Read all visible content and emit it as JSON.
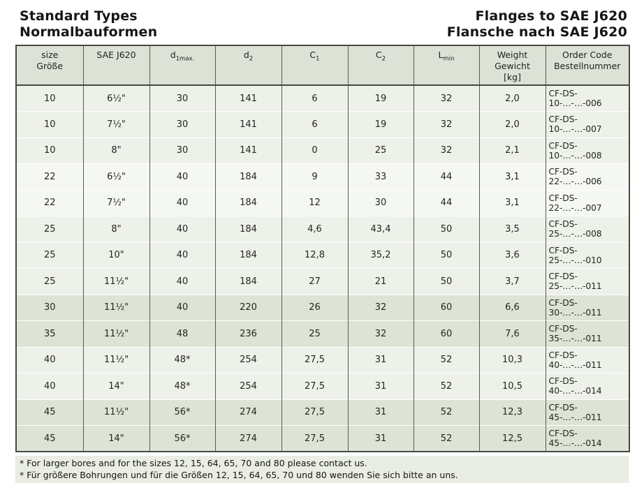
{
  "header": {
    "title_left_line1": "Standard Types",
    "title_left_line2": "Normalbauformen",
    "title_right_line1": "Flanges to SAE J620",
    "title_right_line2": "Flansche nach SAE J620"
  },
  "table": {
    "columns": [
      {
        "id": "size",
        "lines": [
          "size",
          "Größe"
        ]
      },
      {
        "id": "sae",
        "lines": [
          "SAE J620"
        ]
      },
      {
        "id": "d1",
        "base": "d",
        "sub": "1max."
      },
      {
        "id": "d2",
        "base": "d",
        "sub": "2"
      },
      {
        "id": "c1",
        "base": "C",
        "sub": "1"
      },
      {
        "id": "c2",
        "base": "C",
        "sub": "2"
      },
      {
        "id": "lmin",
        "base": "L",
        "sub": "min"
      },
      {
        "id": "weight",
        "lines": [
          "Weight",
          "Gewicht",
          "[kg]"
        ]
      },
      {
        "id": "order",
        "lines": [
          "Order Code",
          "Bestellnummer"
        ]
      }
    ],
    "shades": {
      "a": "#edf1e9",
      "b": "#f5f8f2",
      "c": "#dde3d5"
    },
    "rows": [
      {
        "size": "10",
        "sae": "6½\"",
        "d1": "30",
        "d2": "141",
        "c1": "6",
        "c2": "19",
        "lmin": "32",
        "weight": "2,0",
        "order": "CF-DS-10-…-…-006",
        "shade": "a"
      },
      {
        "size": "10",
        "sae": "7½\"",
        "d1": "30",
        "d2": "141",
        "c1": "6",
        "c2": "19",
        "lmin": "32",
        "weight": "2,0",
        "order": "CF-DS-10-…-…-007",
        "shade": "a"
      },
      {
        "size": "10",
        "sae": "8\"",
        "d1": "30",
        "d2": "141",
        "c1": "0",
        "c2": "25",
        "lmin": "32",
        "weight": "2,1",
        "order": "CF-DS-10-…-…-008",
        "shade": "a"
      },
      {
        "size": "22",
        "sae": "6½\"",
        "d1": "40",
        "d2": "184",
        "c1": "9",
        "c2": "33",
        "lmin": "44",
        "weight": "3,1",
        "order": "CF-DS-22-…-…-006",
        "shade": "b"
      },
      {
        "size": "22",
        "sae": "7½\"",
        "d1": "40",
        "d2": "184",
        "c1": "12",
        "c2": "30",
        "lmin": "44",
        "weight": "3,1",
        "order": "CF-DS-22-…-…-007",
        "shade": "b"
      },
      {
        "size": "25",
        "sae": "8\"",
        "d1": "40",
        "d2": "184",
        "c1": "4,6",
        "c2": "43,4",
        "lmin": "50",
        "weight": "3,5",
        "order": "CF-DS-25-…-…-008",
        "shade": "a"
      },
      {
        "size": "25",
        "sae": "10\"",
        "d1": "40",
        "d2": "184",
        "c1": "12,8",
        "c2": "35,2",
        "lmin": "50",
        "weight": "3,6",
        "order": "CF-DS-25-…-…-010",
        "shade": "a"
      },
      {
        "size": "25",
        "sae": "11½\"",
        "d1": "40",
        "d2": "184",
        "c1": "27",
        "c2": "21",
        "lmin": "50",
        "weight": "3,7",
        "order": "CF-DS-25-…-…-011",
        "shade": "a"
      },
      {
        "size": "30",
        "sae": "11½\"",
        "d1": "40",
        "d2": "220",
        "c1": "26",
        "c2": "32",
        "lmin": "60",
        "weight": "6,6",
        "order": "CF-DS-30-…-…-011",
        "shade": "c"
      },
      {
        "size": "35",
        "sae": "11½\"",
        "d1": "48",
        "d2": "236",
        "c1": "25",
        "c2": "32",
        "lmin": "60",
        "weight": "7,6",
        "order": "CF-DS-35-…-…-011",
        "shade": "c"
      },
      {
        "size": "40",
        "sae": "11½\"",
        "d1": "48*",
        "d2": "254",
        "c1": "27,5",
        "c2": "31",
        "lmin": "52",
        "weight": "10,3",
        "order": "CF-DS-40-…-…-011",
        "shade": "a"
      },
      {
        "size": "40",
        "sae": "14\"",
        "d1": "48*",
        "d2": "254",
        "c1": "27,5",
        "c2": "31",
        "lmin": "52",
        "weight": "10,5",
        "order": "CF-DS-40-…-…-014",
        "shade": "a"
      },
      {
        "size": "45",
        "sae": "11½\"",
        "d1": "56*",
        "d2": "274",
        "c1": "27,5",
        "c2": "31",
        "lmin": "52",
        "weight": "12,3",
        "order": "CF-DS-45-…-…-011",
        "shade": "c"
      },
      {
        "size": "45",
        "sae": "14\"",
        "d1": "56*",
        "d2": "274",
        "c1": "27,5",
        "c2": "31",
        "lmin": "52",
        "weight": "12,5",
        "order": "CF-DS-45-…-…-014",
        "shade": "c"
      }
    ]
  },
  "footnotes": [
    "* For larger bores and for the sizes 12, 15, 64, 65, 70 and 80 please contact us.",
    "* Für größere Bohrungen und für die Größen 12, 15, 64, 65, 70 und 80 wenden Sie sich bitte an uns."
  ]
}
